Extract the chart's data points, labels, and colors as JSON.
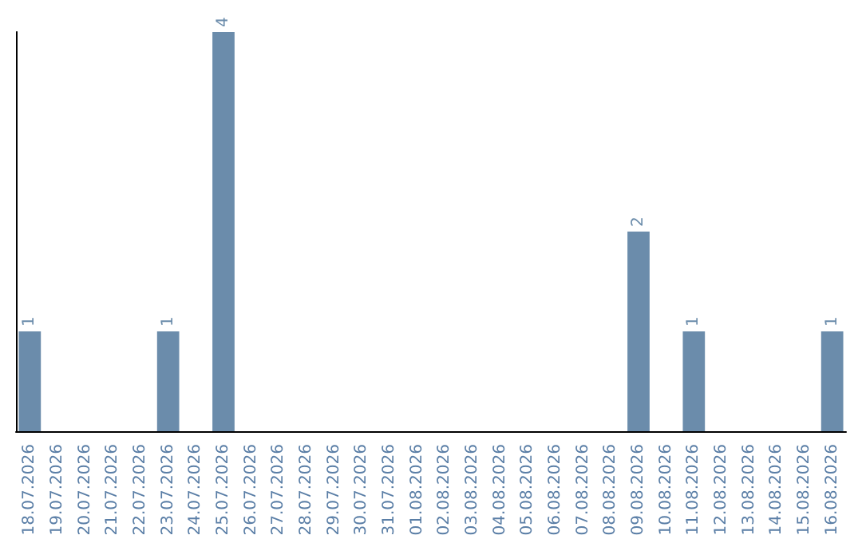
{
  "chart_data": {
    "type": "bar",
    "categories": [
      "18.07.2026",
      "19.07.2026",
      "20.07.2026",
      "21.07.2026",
      "22.07.2026",
      "23.07.2026",
      "24.07.2026",
      "25.07.2026",
      "26.07.2026",
      "27.07.2026",
      "28.07.2026",
      "29.07.2026",
      "30.07.2026",
      "31.07.2026",
      "01.08.2026",
      "02.08.2026",
      "03.08.2026",
      "04.08.2026",
      "05.08.2026",
      "06.08.2026",
      "07.08.2026",
      "08.08.2026",
      "09.08.2026",
      "10.08.2026",
      "11.08.2026",
      "12.08.2026",
      "13.08.2026",
      "14.08.2026",
      "15.08.2026",
      "16.08.2026"
    ],
    "values": [
      1,
      0,
      0,
      0,
      0,
      1,
      0,
      4,
      0,
      0,
      0,
      0,
      0,
      0,
      0,
      0,
      0,
      0,
      0,
      0,
      0,
      0,
      2,
      0,
      1,
      0,
      0,
      0,
      0,
      1
    ],
    "value_labels": [
      "1",
      null,
      null,
      null,
      null,
      "1",
      null,
      "4",
      null,
      null,
      null,
      null,
      null,
      null,
      null,
      null,
      null,
      null,
      null,
      null,
      null,
      null,
      "2",
      null,
      "1",
      null,
      null,
      null,
      null,
      "1"
    ],
    "color": "#6b8cab",
    "tick_labels": "x"
  }
}
